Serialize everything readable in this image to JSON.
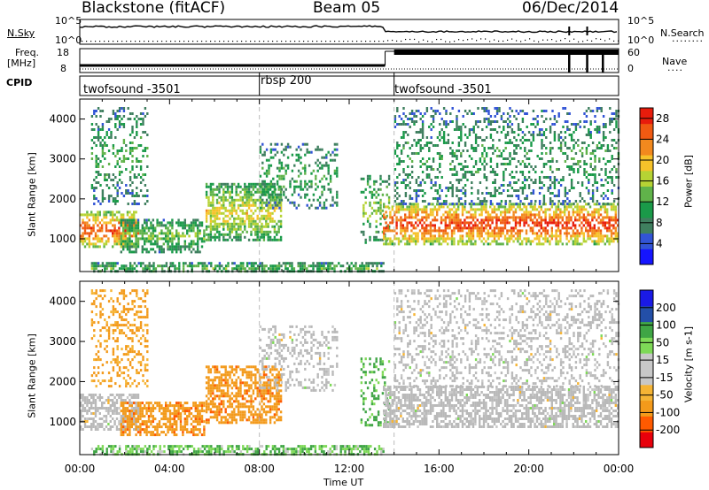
{
  "header": {
    "station": "Blackstone (fitACF)",
    "beam": "Beam 05",
    "date": "06/Dec/2014"
  },
  "labels": {
    "nsky": "N.Sky",
    "nsearch": "N.Search",
    "freq_line1": "Freq.",
    "freq_line2": "[MHz]",
    "nave": "Nave",
    "cpid": "CPID",
    "nsky_ticks": [
      "10^5",
      "10^0"
    ],
    "nsearch_ticks": [
      "10^5",
      "10^0"
    ],
    "freq_ticks": [
      "18",
      "8"
    ],
    "nave_ticks": [
      "60",
      "0"
    ]
  },
  "cpid_segments": [
    {
      "label": "twofsound -3501",
      "start_hour": 0.0
    },
    {
      "label": "rbsp 200",
      "start_hour": 8.0
    },
    {
      "label": "twofsound -3501",
      "start_hour": 14.0
    }
  ],
  "colors": {
    "power": [
      "#1515ff",
      "#3254d6",
      "#3f7f5f",
      "#1a9a49",
      "#60b34a",
      "#b6d334",
      "#f6c22a",
      "#f2891e",
      "#f05a12",
      "#e81c0c"
    ],
    "velocity": [
      "#e8000b",
      "#ff5a00",
      "#f39a1b",
      "#f5b435",
      "#c8c8c8",
      "#c8c8c8",
      "#7ed957",
      "#3fa545",
      "#234fa8",
      "#1a1ae6"
    ],
    "ground": "#b9b9b9"
  },
  "chart_data": [
    {
      "type": "heatmap",
      "name": "power",
      "ylabel": "Slant Range [km]",
      "xlabel": "Time UT",
      "xlim": [
        0,
        24
      ],
      "ylim": [
        180,
        4500
      ],
      "x_ticks": [
        "00:00",
        "04:00",
        "08:00",
        "12:00",
        "16:00",
        "20:00",
        "00:00"
      ],
      "y_ticks": [
        1000,
        2000,
        3000,
        4000
      ],
      "colorbar": {
        "label": "Power [dB]",
        "ticks": [
          "4",
          "8",
          "12",
          "16",
          "20",
          "24",
          "28"
        ],
        "range": [
          0,
          30
        ]
      },
      "features": [
        {
          "t0": 0.0,
          "t1": 2.6,
          "r0": 800,
          "r1": 1700,
          "level": 22
        },
        {
          "t0": 0.5,
          "t1": 3.0,
          "r0": 1900,
          "r1": 4300,
          "level": 9
        },
        {
          "t0": 1.8,
          "t1": 5.5,
          "r0": 700,
          "r1": 1500,
          "level": 11
        },
        {
          "t0": 5.6,
          "t1": 9.0,
          "r0": 1000,
          "r1": 2400,
          "level": 15
        },
        {
          "t0": 8.0,
          "t1": 11.5,
          "r0": 1800,
          "r1": 3400,
          "level": 9
        },
        {
          "t0": 12.5,
          "t1": 13.8,
          "r0": 900,
          "r1": 2600,
          "level": 12
        },
        {
          "t0": 13.5,
          "t1": 24.0,
          "r0": 900,
          "r1": 1900,
          "level": 23
        },
        {
          "t0": 14.0,
          "t1": 24.0,
          "r0": 1900,
          "r1": 4300,
          "level": 8
        },
        {
          "t0": 0.5,
          "t1": 13.5,
          "r0": 180,
          "r1": 420,
          "level": 10
        }
      ]
    },
    {
      "type": "heatmap",
      "name": "velocity",
      "ylabel": "Slant Range [km]",
      "xlabel": "Time UT",
      "xlim": [
        0,
        24
      ],
      "ylim": [
        180,
        4500
      ],
      "x_ticks": [
        "00:00",
        "04:00",
        "08:00",
        "12:00",
        "16:00",
        "20:00",
        "00:00"
      ],
      "y_ticks": [
        1000,
        2000,
        3000,
        4000
      ],
      "colorbar": {
        "label": "Velocity [m s-1]",
        "ticks": [
          "-200",
          "-100",
          "-50",
          "-15",
          "15",
          "50",
          "100",
          "200"
        ],
        "range": [
          -250,
          250
        ]
      },
      "features": [
        {
          "t0": 0.0,
          "t1": 2.6,
          "r0": 800,
          "r1": 1700,
          "value": 0
        },
        {
          "t0": 0.5,
          "t1": 3.0,
          "r0": 1900,
          "r1": 4300,
          "value": -40
        },
        {
          "t0": 1.8,
          "t1": 5.5,
          "r0": 700,
          "r1": 1500,
          "value": -60
        },
        {
          "t0": 5.6,
          "t1": 9.0,
          "r0": 1000,
          "r1": 2400,
          "value": -60
        },
        {
          "t0": 8.0,
          "t1": 11.5,
          "r0": 1800,
          "r1": 3400,
          "value": 0
        },
        {
          "t0": 12.5,
          "t1": 13.8,
          "r0": 900,
          "r1": 2600,
          "value": 40
        },
        {
          "t0": 13.5,
          "t1": 24.0,
          "r0": 900,
          "r1": 1900,
          "value": 0
        },
        {
          "t0": 14.0,
          "t1": 24.0,
          "r0": 1900,
          "r1": 4300,
          "value": 0
        },
        {
          "t0": 0.5,
          "t1": 13.5,
          "r0": 180,
          "r1": 420,
          "value": 30
        }
      ]
    }
  ]
}
